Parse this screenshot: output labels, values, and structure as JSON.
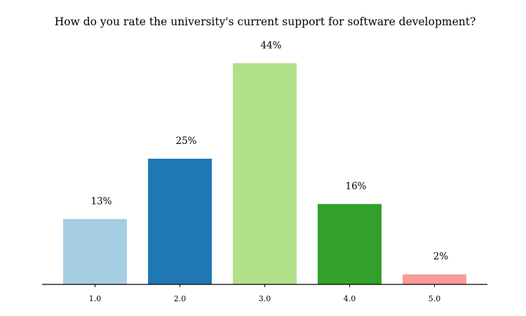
{
  "chart_data": {
    "type": "bar",
    "title": "How do you rate the university's current support for software development?",
    "xlabel": "",
    "ylabel": "",
    "categories": [
      "1.0",
      "2.0",
      "3.0",
      "4.0",
      "5.0"
    ],
    "values": [
      13,
      25,
      44,
      16,
      2
    ],
    "data_labels": [
      "13%",
      "25%",
      "44%",
      "16%",
      "2%"
    ],
    "unit": "%",
    "ylim": [
      0,
      44
    ],
    "grid": false,
    "legend": "none",
    "colors": [
      "#a6cee3",
      "#1f78b4",
      "#b2df8a",
      "#33a02c",
      "#fb9a99"
    ]
  }
}
